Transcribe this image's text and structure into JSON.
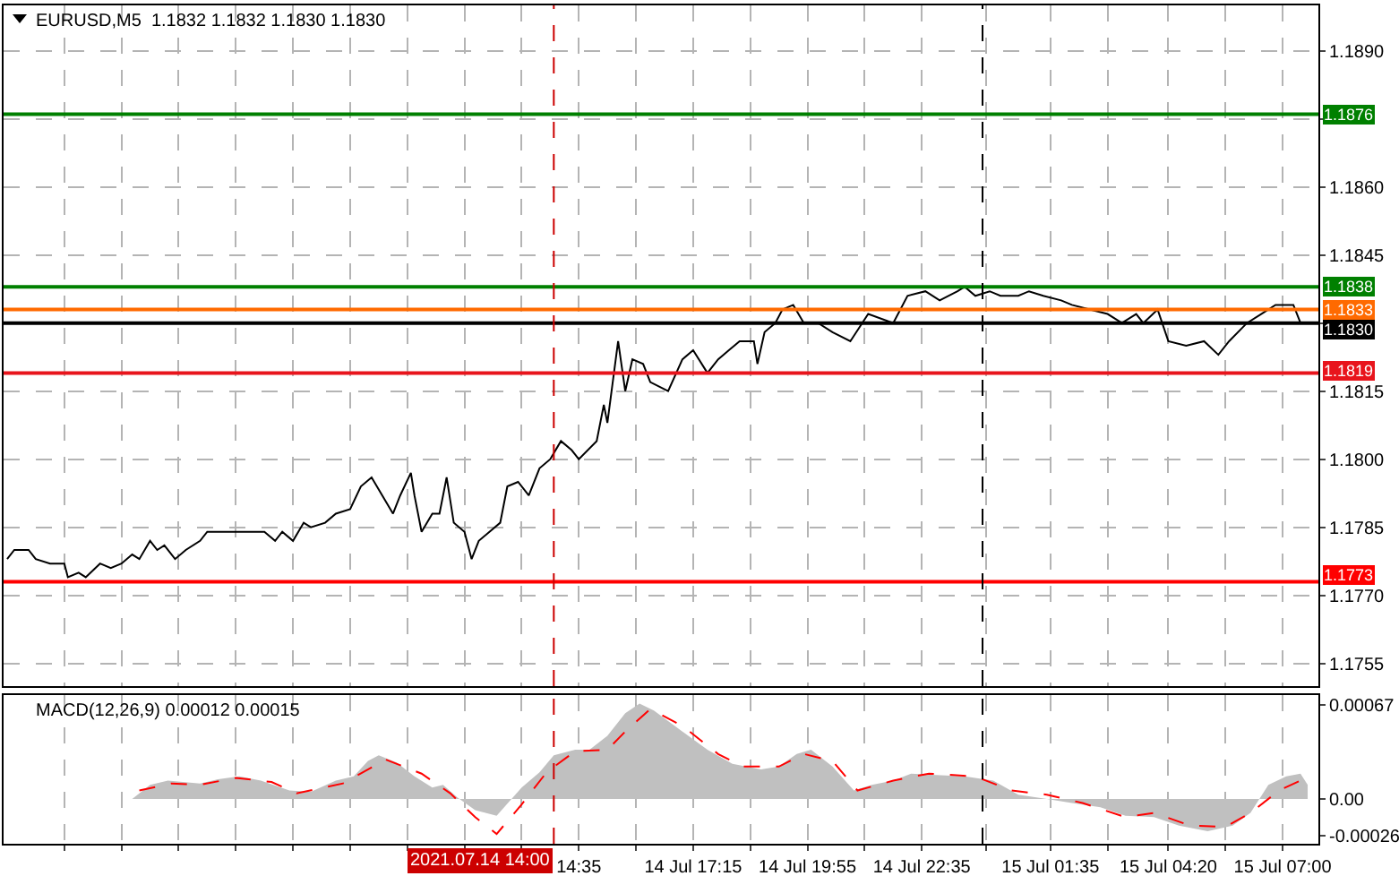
{
  "chart_data": [
    {
      "type": "line",
      "title": "EURUSD,M5  1.1832 1.1832 1.1830 1.1830",
      "xlim": [
        "2021-07-14T01:10",
        "2021-07-15T07:50"
      ],
      "xticks": [
        {
          "value": "2021-07-14T02:35",
          "label": null
        },
        {
          "value": "2021-07-14T03:55",
          "label": null
        },
        {
          "value": "2021-07-14T05:15",
          "label": null
        },
        {
          "value": "2021-07-14T06:35",
          "label": null
        },
        {
          "value": "2021-07-14T07:55",
          "label": null
        },
        {
          "value": "2021-07-14T09:15",
          "label": null
        },
        {
          "value": "2021-07-14T10:35",
          "label": null
        },
        {
          "value": "2021-07-14T11:55",
          "label": null
        },
        {
          "value": "2021-07-14T13:15",
          "label": null
        },
        {
          "value": "2021-07-14T14:35",
          "label": null
        },
        {
          "value": "2021-07-14T15:55",
          "label": null
        },
        {
          "value": "2021-07-14T17:15",
          "label": null
        },
        {
          "value": "2021-07-14T18:35",
          "label": null
        },
        {
          "value": "2021-07-14T19:55",
          "label": null
        },
        {
          "value": "2021-07-14T21:15",
          "label": null
        },
        {
          "value": "2021-07-14T22:35",
          "label": null
        },
        {
          "value": "2021-07-15T00:05",
          "label": null
        },
        {
          "value": "2021-07-15T01:35",
          "label": null
        },
        {
          "value": "2021-07-15T02:55",
          "label": null
        },
        {
          "value": "2021-07-15T04:20",
          "label": null
        },
        {
          "value": "2021-07-15T05:40",
          "label": null
        },
        {
          "value": "2021-07-15T07:00",
          "label": null
        }
      ],
      "ylim": [
        1.175,
        1.19
      ],
      "yticks": [
        {
          "value": 1.1755,
          "label": "1.1755"
        },
        {
          "value": 1.177,
          "label": "1.1770"
        },
        {
          "value": 1.1785,
          "label": "1.1785"
        },
        {
          "value": 1.18,
          "label": "1.1800"
        },
        {
          "value": 1.1815,
          "label": "1.1815"
        },
        {
          "value": 1.183,
          "label": null
        },
        {
          "value": 1.1845,
          "label": "1.1845"
        },
        {
          "value": 1.186,
          "label": "1.1860"
        },
        {
          "value": 1.1875,
          "label": null
        },
        {
          "value": 1.189,
          "label": "1.1890"
        }
      ],
      "tick_labels": "y",
      "grid": true,
      "series": [
        {
          "color": "#000000",
          "x": [
            "2021-07-14T01:15",
            "2021-07-14T01:25",
            "2021-07-14T01:45",
            "2021-07-14T01:55",
            "2021-07-14T02:15",
            "2021-07-14T02:35",
            "2021-07-14T02:40",
            "2021-07-14T02:55",
            "2021-07-14T03:05",
            "2021-07-14T03:25",
            "2021-07-14T03:40",
            "2021-07-14T03:55",
            "2021-07-14T04:10",
            "2021-07-14T04:20",
            "2021-07-14T04:35",
            "2021-07-14T04:45",
            "2021-07-14T04:55",
            "2021-07-14T05:10",
            "2021-07-14T05:25",
            "2021-07-14T05:45",
            "2021-07-14T05:55",
            "2021-07-14T06:35",
            "2021-07-14T06:50",
            "2021-07-14T07:15",
            "2021-07-14T07:30",
            "2021-07-14T07:40",
            "2021-07-14T07:55",
            "2021-07-14T08:10",
            "2021-07-14T08:20",
            "2021-07-14T08:40",
            "2021-07-14T08:55",
            "2021-07-14T09:15",
            "2021-07-14T09:30",
            "2021-07-14T09:45",
            "2021-07-14T10:00",
            "2021-07-14T10:15",
            "2021-07-14T10:25",
            "2021-07-14T10:40",
            "2021-07-14T10:45",
            "2021-07-14T10:55",
            "2021-07-14T11:10",
            "2021-07-14T11:20",
            "2021-07-14T11:30",
            "2021-07-14T11:40",
            "2021-07-14T11:55",
            "2021-07-14T12:05",
            "2021-07-14T12:15",
            "2021-07-14T12:30",
            "2021-07-14T12:45",
            "2021-07-14T12:55",
            "2021-07-14T13:10",
            "2021-07-14T13:25",
            "2021-07-14T13:40",
            "2021-07-14T13:55",
            "2021-07-14T14:10",
            "2021-07-14T14:25",
            "2021-07-14T14:35",
            "2021-07-14T15:00",
            "2021-07-14T15:10",
            "2021-07-14T15:15",
            "2021-07-14T15:30",
            "2021-07-14T15:40",
            "2021-07-14T15:50",
            "2021-07-14T16:05",
            "2021-07-14T16:15",
            "2021-07-14T16:40",
            "2021-07-14T17:00",
            "2021-07-14T17:15",
            "2021-07-14T17:35",
            "2021-07-14T17:50",
            "2021-07-14T18:05",
            "2021-07-14T18:20",
            "2021-07-14T18:40",
            "2021-07-14T18:45",
            "2021-07-14T18:55",
            "2021-07-14T19:10",
            "2021-07-14T19:20",
            "2021-07-14T19:35",
            "2021-07-14T19:50",
            "2021-07-14T20:10",
            "2021-07-14T20:30",
            "2021-07-14T20:55",
            "2021-07-14T21:20",
            "2021-07-14T21:55",
            "2021-07-14T22:15",
            "2021-07-14T22:40",
            "2021-07-14T23:00",
            "2021-07-14T23:25",
            "2021-07-14T23:35",
            "2021-07-14T23:50",
            "2021-07-15T00:10",
            "2021-07-15T00:25",
            "2021-07-15T00:50",
            "2021-07-15T01:05",
            "2021-07-15T01:25",
            "2021-07-15T01:50",
            "2021-07-15T02:05",
            "2021-07-15T02:30",
            "2021-07-15T02:55",
            "2021-07-15T03:15",
            "2021-07-15T03:35",
            "2021-07-15T03:45",
            "2021-07-15T04:05",
            "2021-07-15T04:20",
            "2021-07-15T04:45",
            "2021-07-15T05:10",
            "2021-07-15T05:30",
            "2021-07-15T05:45",
            "2021-07-15T06:10",
            "2021-07-15T06:30",
            "2021-07-15T06:50",
            "2021-07-15T07:15",
            "2021-07-15T07:25"
          ],
          "values": [
            1.1778,
            1.178,
            1.178,
            1.1778,
            1.1777,
            1.1777,
            1.1774,
            1.1775,
            1.1774,
            1.1777,
            1.1776,
            1.1777,
            1.1779,
            1.1778,
            1.1782,
            1.178,
            1.1781,
            1.1778,
            1.178,
            1.1782,
            1.1784,
            1.1784,
            1.1784,
            1.1784,
            1.1782,
            1.1784,
            1.1782,
            1.1786,
            1.1785,
            1.1786,
            1.1788,
            1.1789,
            1.1794,
            1.1796,
            1.1792,
            1.1788,
            1.1792,
            1.1797,
            1.1792,
            1.1784,
            1.1788,
            1.1788,
            1.1796,
            1.1786,
            1.1784,
            1.1778,
            1.1782,
            1.1784,
            1.1786,
            1.1794,
            1.1795,
            1.1792,
            1.1798,
            1.18,
            1.1804,
            1.1802,
            1.18,
            1.1804,
            1.1812,
            1.1808,
            1.1826,
            1.1815,
            1.1822,
            1.1821,
            1.1817,
            1.1815,
            1.1822,
            1.1824,
            1.1819,
            1.1822,
            1.1824,
            1.1826,
            1.1826,
            1.1821,
            1.1828,
            1.183,
            1.1833,
            1.1834,
            1.183,
            1.183,
            1.1828,
            1.1826,
            1.1832,
            1.183,
            1.1836,
            1.1837,
            1.1835,
            1.1837,
            1.1838,
            1.1836,
            1.1837,
            1.1836,
            1.1836,
            1.1837,
            1.1836,
            1.1835,
            1.1834,
            1.1833,
            1.1832,
            1.183,
            1.1832,
            1.183,
            1.1833,
            1.1826,
            1.1825,
            1.1826,
            1.1823,
            1.1826,
            1.183,
            1.1832,
            1.1834,
            1.1834,
            1.183
          ]
        }
      ],
      "ref_lines": [
        {
          "axis": "y",
          "value": 1.1876,
          "label": "1.1876",
          "color": "#008000"
        },
        {
          "axis": "y",
          "value": 1.1838,
          "label": "1.1838",
          "color": "#008000"
        },
        {
          "axis": "y",
          "value": 1.1833,
          "label": "1.1833",
          "color": "#ff6a00"
        },
        {
          "axis": "y",
          "value": 1.183,
          "label": "1.1830",
          "color": "#000000"
        },
        {
          "axis": "y",
          "value": 1.1819,
          "label": "1.1819",
          "color": "#e8141c"
        },
        {
          "axis": "y",
          "value": 1.1773,
          "label": "1.1773",
          "color": "#ff0000"
        },
        {
          "axis": "x",
          "value": "2021-07-14T14:00",
          "color": "#cc0000",
          "line_style": "dashed"
        },
        {
          "axis": "x",
          "value": "2021-07-15T00:00",
          "color": "#000000",
          "line_style": "dashed"
        }
      ]
    },
    {
      "type": "area",
      "title": "MACD(12,26,9) 0.00012 0.00015",
      "xlim": [
        "2021-07-14T01:10",
        "2021-07-15T07:50"
      ],
      "xticks": [
        {
          "value": "2021-07-14T02:35",
          "label": null
        },
        {
          "value": "2021-07-14T03:55",
          "label": null
        },
        {
          "value": "2021-07-14T05:15",
          "label": null
        },
        {
          "value": "2021-07-14T06:35",
          "label": null
        },
        {
          "value": "2021-07-14T07:55",
          "label": null
        },
        {
          "value": "2021-07-14T09:15",
          "label": null
        },
        {
          "value": "2021-07-14T10:35",
          "label": null
        },
        {
          "value": "2021-07-14T11:55",
          "label": null
        },
        {
          "value": "2021-07-14T13:15",
          "label": null
        },
        {
          "value": "2021-07-14T14:35",
          "label": "14:35"
        },
        {
          "value": "2021-07-14T15:55",
          "label": null
        },
        {
          "value": "2021-07-14T17:15",
          "label": "14 Jul 17:15"
        },
        {
          "value": "2021-07-14T18:35",
          "label": null
        },
        {
          "value": "2021-07-14T19:55",
          "label": "14 Jul 19:55"
        },
        {
          "value": "2021-07-14T21:15",
          "label": null
        },
        {
          "value": "2021-07-14T22:35",
          "label": "14 Jul 22:35"
        },
        {
          "value": "2021-07-15T00:05",
          "label": null
        },
        {
          "value": "2021-07-15T01:35",
          "label": "15 Jul 01:35"
        },
        {
          "value": "2021-07-15T02:55",
          "label": null
        },
        {
          "value": "2021-07-15T04:20",
          "label": "15 Jul 04:20"
        },
        {
          "value": "2021-07-15T05:40",
          "label": null
        },
        {
          "value": "2021-07-15T07:00",
          "label": "15 Jul 07:00"
        }
      ],
      "ylim": [
        -0.00032,
        0.00074
      ],
      "yticks": [
        -0.00026,
        {
          "value": 0,
          "label": "0.00"
        },
        0.00067
      ],
      "grid": "x",
      "series": [
        {
          "color": "#c0c0c0",
          "x": [
            "2021-07-14T04:10",
            "2021-07-14T04:35",
            "2021-07-14T05:00",
            "2021-07-14T05:45",
            "2021-07-14T06:10",
            "2021-07-14T06:40",
            "2021-07-14T07:10",
            "2021-07-14T07:50",
            "2021-07-14T08:20",
            "2021-07-14T08:55",
            "2021-07-14T09:20",
            "2021-07-14T09:40",
            "2021-07-14T09:55",
            "2021-07-14T10:20",
            "2021-07-14T10:45",
            "2021-07-14T11:10",
            "2021-07-14T11:25",
            "2021-07-14T11:45",
            "2021-07-14T12:10",
            "2021-07-14T12:40",
            "2021-07-14T13:15",
            "2021-07-14T13:40",
            "2021-07-14T14:00",
            "2021-07-14T14:30",
            "2021-07-14T14:50",
            "2021-07-14T15:15",
            "2021-07-14T15:40",
            "2021-07-14T16:00",
            "2021-07-14T16:20",
            "2021-07-14T17:00",
            "2021-07-14T17:35",
            "2021-07-14T18:10",
            "2021-07-14T18:50",
            "2021-07-14T19:15",
            "2021-07-14T19:40",
            "2021-07-14T20:00",
            "2021-07-14T20:30",
            "2021-07-14T21:00",
            "2021-07-14T21:25",
            "2021-07-14T21:55",
            "2021-07-14T22:20",
            "2021-07-14T22:55",
            "2021-07-14T23:35",
            "2021-07-15T00:15",
            "2021-07-15T00:50",
            "2021-07-15T01:30",
            "2021-07-15T02:05",
            "2021-07-15T02:45",
            "2021-07-15T03:20",
            "2021-07-15T04:00",
            "2021-07-15T04:35",
            "2021-07-15T05:15",
            "2021-07-15T05:50",
            "2021-07-15T06:15",
            "2021-07-15T06:40",
            "2021-07-15T07:05",
            "2021-07-15T07:25",
            "2021-07-15T07:35"
          ],
          "values": [
            0,
            0.0001,
            0.00013,
            0.00011,
            0.00014,
            0.00016,
            0.00013,
            6e-05,
            5e-05,
            0.00013,
            0.00016,
            0.00027,
            0.00031,
            0.00026,
            0.00016,
            8e-05,
            0.0001,
            1e-05,
            -8e-05,
            -0.00012,
            8e-05,
            0.00019,
            0.00031,
            0.00035,
            0.00035,
            0.00045,
            0.00061,
            0.00068,
            0.00063,
            0.00048,
            0.00035,
            0.00025,
            0.00021,
            0.00023,
            0.00032,
            0.00035,
            0.00023,
            6e-05,
            0.0001,
            0.00013,
            0.00018,
            0.00017,
            0.00016,
            0.00013,
            3e-05,
            0,
            -3e-05,
            -6e-05,
            -0.00012,
            -0.00013,
            -0.00019,
            -0.00023,
            -0.00019,
            -0.0001,
            0.0001,
            0.00016,
            0.00018,
            0.0001
          ]
        },
        {
          "type": "line",
          "color": "#ff0000",
          "line_style": "dashed",
          "x": [
            "2021-07-14T04:20",
            "2021-07-14T05:05",
            "2021-07-14T05:45",
            "2021-07-14T06:35",
            "2021-07-14T07:25",
            "2021-07-14T08:00",
            "2021-07-14T09:05",
            "2021-07-14T10:05",
            "2021-07-14T10:55",
            "2021-07-14T11:35",
            "2021-07-14T12:10",
            "2021-07-14T12:40",
            "2021-07-14T13:15",
            "2021-07-14T13:50",
            "2021-07-14T14:30",
            "2021-07-14T15:15",
            "2021-07-14T15:40",
            "2021-07-14T16:15",
            "2021-07-14T17:00",
            "2021-07-14T17:50",
            "2021-07-14T18:25",
            "2021-07-14T19:15",
            "2021-07-14T19:50",
            "2021-07-14T20:30",
            "2021-07-14T21:05",
            "2021-07-14T21:55",
            "2021-07-14T22:45",
            "2021-07-14T23:50",
            "2021-07-15T00:40",
            "2021-07-15T01:30",
            "2021-07-15T02:20",
            "2021-07-15T03:20",
            "2021-07-15T04:00",
            "2021-07-15T04:50",
            "2021-07-15T05:40",
            "2021-07-15T06:15",
            "2021-07-15T06:55",
            "2021-07-15T07:25"
          ],
          "values": [
            6e-05,
            0.00011,
            0.0001,
            0.00015,
            0.00012,
            4e-05,
            0.00011,
            0.00028,
            0.00018,
            4e-05,
            -0.00013,
            -0.00025,
            -4e-05,
            0.00019,
            0.00034,
            0.00035,
            0.00048,
            0.00064,
            0.00052,
            0.00032,
            0.00023,
            0.00023,
            0.00032,
            0.00027,
            6e-05,
            0.00013,
            0.00018,
            0.00016,
            6e-05,
            3e-05,
            -3e-05,
            -0.00013,
            -0.0001,
            -0.00019,
            -0.0002,
            -0.0001,
            6e-05,
            0.00013
          ]
        }
      ],
      "ref_lines": [
        {
          "axis": "x",
          "value": "2021-07-14T14:00",
          "label": "2021.07.14 14:00",
          "color": "#cc0000",
          "line_style": "dashed"
        },
        {
          "axis": "x",
          "value": "2021-07-15T00:00",
          "color": "#000000",
          "line_style": "dashed"
        }
      ]
    }
  ]
}
